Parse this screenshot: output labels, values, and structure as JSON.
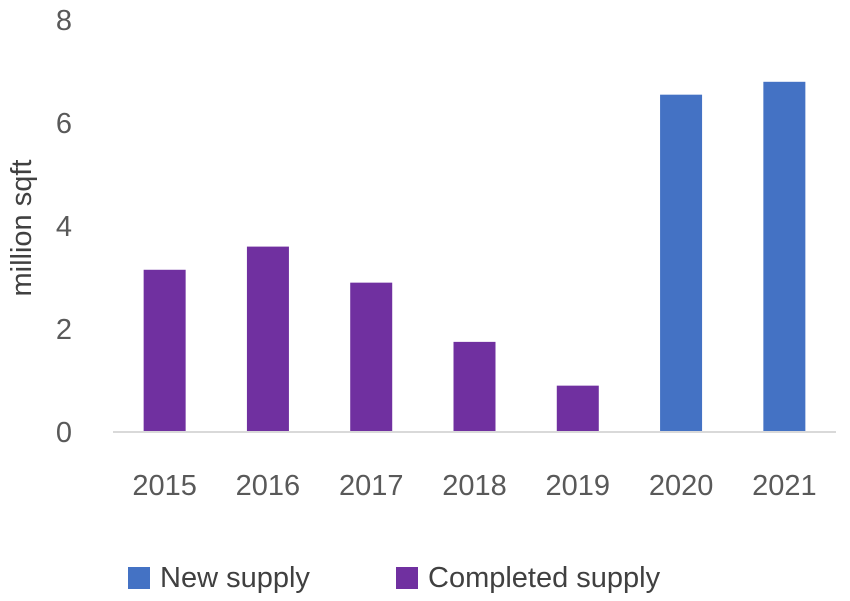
{
  "chart_data": {
    "type": "bar",
    "ylabel": "million sqft",
    "ylim": [
      0,
      8
    ],
    "yticks": [
      0,
      2,
      4,
      6,
      8
    ],
    "grid": false,
    "legend_position": "bottom",
    "categories": [
      "2015",
      "2016",
      "2017",
      "2018",
      "2019",
      "2020",
      "2021"
    ],
    "series": [
      {
        "name": "New supply",
        "color": "#4472C4",
        "values": [
          null,
          null,
          null,
          null,
          null,
          6.55,
          6.8
        ]
      },
      {
        "name": "Completed supply",
        "color": "#7030A0",
        "values": [
          3.15,
          3.6,
          2.9,
          1.75,
          0.9,
          null,
          null
        ]
      }
    ]
  }
}
